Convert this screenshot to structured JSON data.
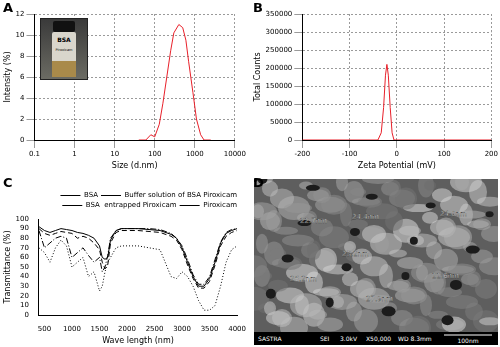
{
  "chart_data": [
    {
      "type": "line",
      "title": "A",
      "x_label": "Size (d.nm)",
      "y_label": "Intensity (%)",
      "annotations": [
        "BSA",
        "Piroxicam"
      ],
      "log": "x",
      "grid": true,
      "color": "#e8202a",
      "x": [
        40,
        60,
        80,
        100,
        130,
        160,
        200,
        250,
        300,
        400,
        500,
        600,
        700,
        900,
        1100,
        1400,
        1700,
        2500
      ],
      "values": [
        0,
        0,
        0.5,
        0.3,
        1.5,
        3.5,
        6,
        8.5,
        10.2,
        11,
        10.7,
        9.5,
        7.5,
        4.5,
        2,
        0.5,
        0,
        0
      ],
      "xlim": [
        0.1,
        10000
      ],
      "xticks": [
        0.1,
        1,
        10,
        100,
        1000,
        10000
      ],
      "ylim": [
        0,
        12
      ],
      "yticks": [
        0,
        2,
        4,
        6,
        8,
        10,
        12
      ]
    },
    {
      "type": "line",
      "title": "B",
      "x_label": "Zeta Potential (mV)",
      "y_label": "Total Counts",
      "grid": true,
      "color": "#e8202a",
      "x": [
        -200,
        -40,
        -33,
        -28,
        -24,
        -21,
        -18,
        -14,
        -10,
        -6,
        200
      ],
      "values": [
        0,
        0,
        20000,
        90000,
        180000,
        210000,
        180000,
        90000,
        20000,
        0,
        0
      ],
      "xlim": [
        -200,
        200
      ],
      "xticks": [
        -200,
        -100,
        0,
        100,
        200
      ],
      "ylim": [
        0,
        350000
      ],
      "yticks": [
        0,
        50000,
        100000,
        150000,
        200000,
        250000,
        300000,
        350000
      ]
    },
    {
      "type": "line",
      "title": "C",
      "x_label": "Wave length (nm)",
      "y_label": "Transmittance (%)",
      "grid": false,
      "legend": "upper right",
      "x": [
        400,
        500,
        600,
        700,
        800,
        900,
        1000,
        1100,
        1200,
        1300,
        1400,
        1500,
        1550,
        1600,
        1650,
        1700,
        1800,
        1900,
        2000,
        2200,
        2400,
        2600,
        2800,
        2900,
        3000,
        3100,
        3200,
        3300,
        3400,
        3500,
        3600,
        3700,
        3800,
        3900,
        4000
      ],
      "series": [
        {
          "name": "BSA",
          "color": "#000000",
          "line_style": "solid",
          "values": [
            92,
            88,
            86,
            88,
            90,
            89,
            88,
            86,
            85,
            83,
            80,
            72,
            60,
            58,
            60,
            78,
            88,
            90,
            90,
            90,
            89,
            88,
            84,
            80,
            70,
            55,
            40,
            30,
            30,
            38,
            55,
            75,
            85,
            88,
            90
          ]
        },
        {
          "name": "Buffer solution of BSA Piroxicam",
          "color": "#000000",
          "line_style": "dashed",
          "values": [
            90,
            85,
            83,
            85,
            87,
            86,
            85,
            80,
            82,
            80,
            75,
            68,
            55,
            48,
            52,
            75,
            86,
            88,
            88,
            88,
            87,
            86,
            82,
            78,
            68,
            52,
            38,
            28,
            28,
            35,
            52,
            72,
            82,
            86,
            88
          ]
        },
        {
          "name": "BSA  entrapped Piroxicam",
          "color": "#000000",
          "line_style": "dashdot",
          "values": [
            88,
            70,
            75,
            80,
            82,
            80,
            60,
            65,
            70,
            62,
            55,
            60,
            45,
            50,
            62,
            80,
            88,
            90,
            90,
            90,
            90,
            89,
            85,
            80,
            72,
            58,
            42,
            32,
            32,
            40,
            58,
            76,
            86,
            89,
            90
          ]
        },
        {
          "name": "Piroxicam",
          "color": "#000000",
          "line_style": "dotted",
          "values": [
            70,
            65,
            55,
            70,
            78,
            72,
            50,
            55,
            60,
            40,
            45,
            25,
            30,
            45,
            55,
            60,
            70,
            72,
            72,
            72,
            70,
            68,
            40,
            38,
            45,
            40,
            30,
            15,
            5,
            5,
            10,
            30,
            55,
            68,
            72
          ]
        }
      ],
      "xlim": [
        400,
        4000
      ],
      "xticks": [
        500,
        1000,
        1500,
        2000,
        2500,
        3000,
        3500,
        4000
      ],
      "ylim": [
        0,
        100
      ],
      "yticks": [
        0,
        10,
        20,
        30,
        40,
        50,
        60,
        70,
        80,
        90,
        100
      ]
    }
  ],
  "image": {
    "title": "D",
    "labels": [
      "22.7nm",
      "24.4nm",
      "24.0nm",
      "23.2nm",
      "26.2nm",
      "22.6nm",
      "27.9nm"
    ],
    "info_bar": [
      "SASTRA",
      "SEI",
      "3.0kV",
      "X50,000",
      "WD 8.3mm"
    ],
    "scale_bar": "100nm"
  }
}
